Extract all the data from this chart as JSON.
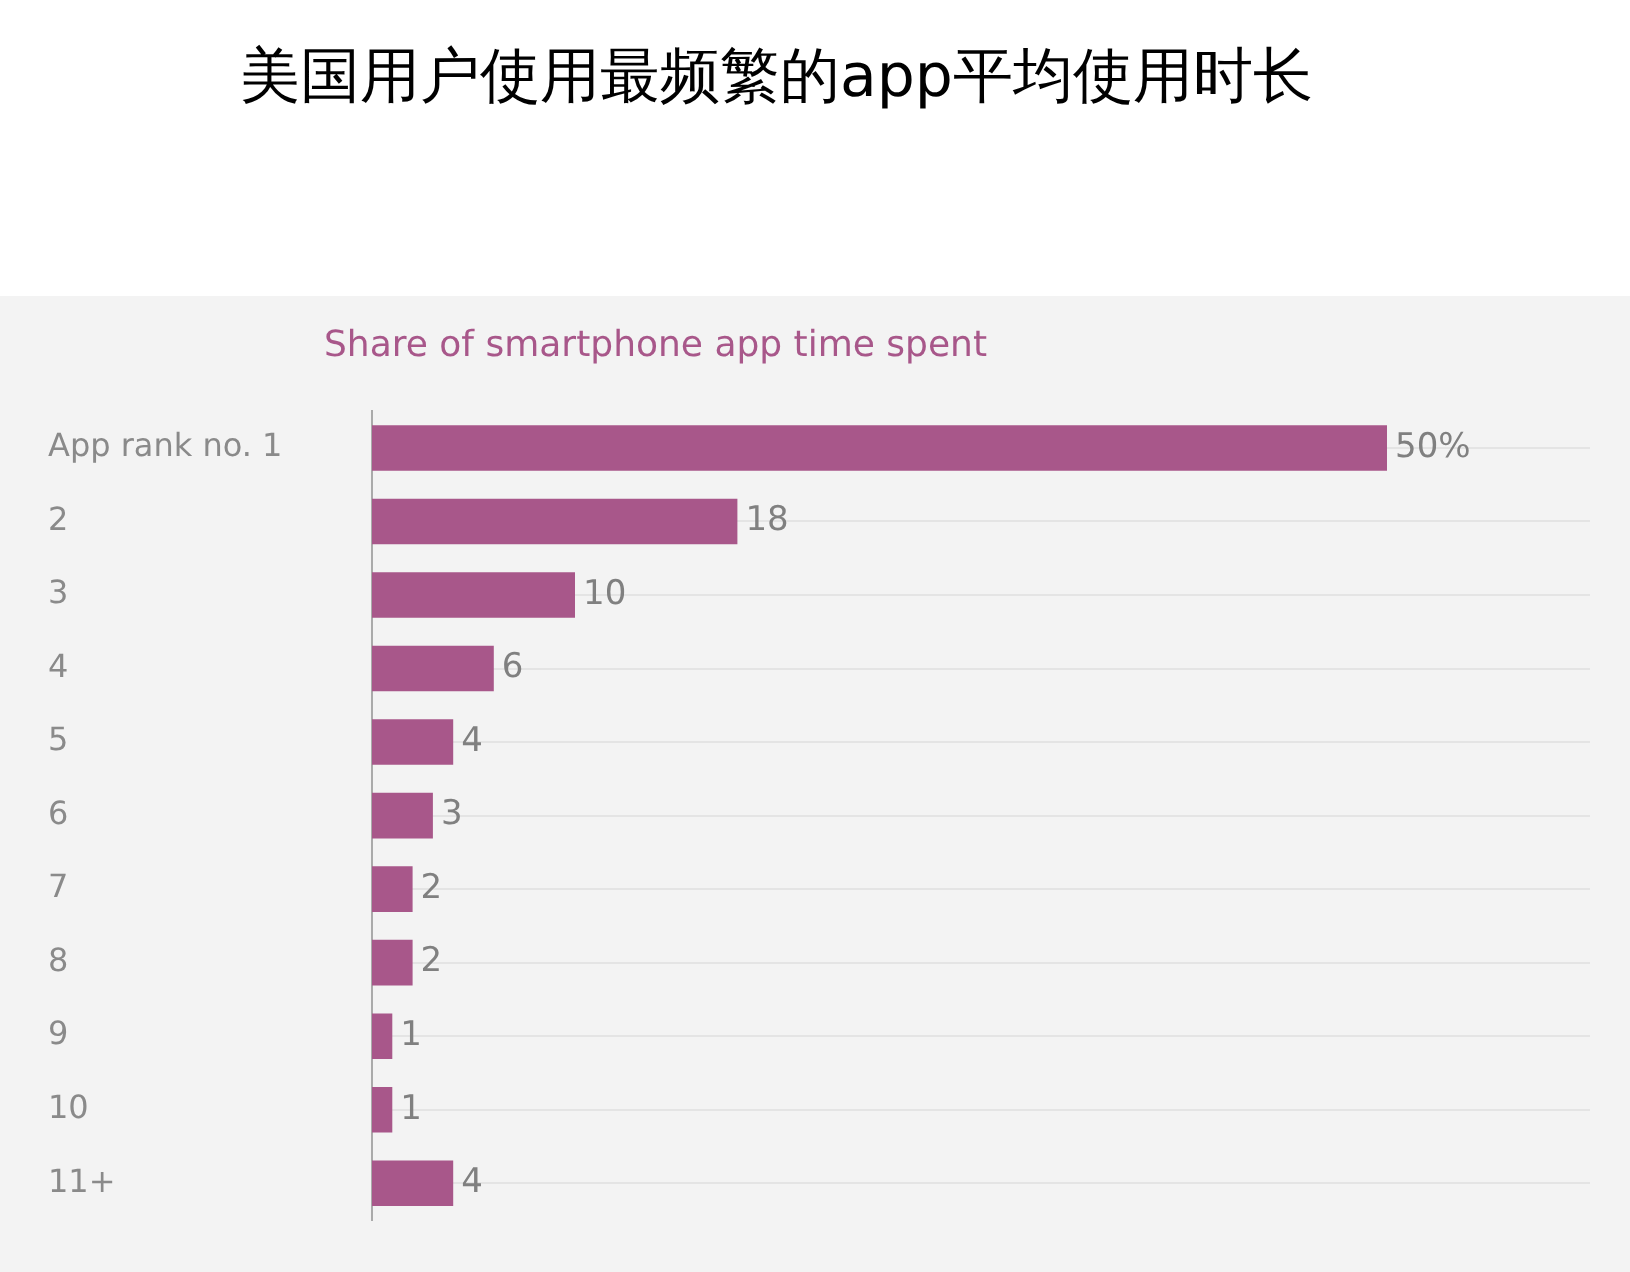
{
  "chart_data": {
    "type": "bar",
    "orientation": "horizontal",
    "title": "美国用户使用最频繁的app平均使用时长",
    "subtitle": "Share of smartphone app time spent",
    "categories": [
      "App rank no. 1",
      "2",
      "3",
      "4",
      "5",
      "6",
      "7",
      "8",
      "9",
      "10",
      "11+"
    ],
    "values": [
      50,
      18,
      10,
      6,
      4,
      3,
      2,
      2,
      1,
      1,
      4
    ],
    "value_labels": [
      "50%",
      "18",
      "10",
      "6",
      "4",
      "3",
      "2",
      "2",
      "1",
      "1",
      "4"
    ],
    "color": "#a8578a",
    "xlim": [
      0,
      60
    ],
    "grid": "y",
    "tick_labels": "y"
  }
}
